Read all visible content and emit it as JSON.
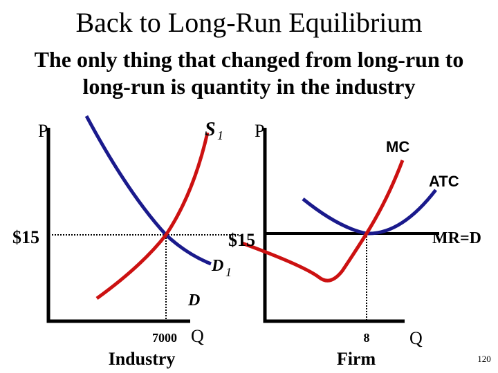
{
  "title": "Back to Long-Run Equilibrium",
  "subtitle": [
    "The only thing that changed from long-run to",
    "long-run is quantity in the industry"
  ],
  "industry": {
    "y_axis": "P",
    "supply": "S",
    "supply_sub": "1",
    "price": "$15",
    "demand_new": "D",
    "demand_new_sub": "1",
    "demand_old": "D",
    "quantity": "7000",
    "x_axis": "Q",
    "caption": "Industry"
  },
  "firm": {
    "y_axis": "P",
    "mc": "MC",
    "atc": "ATC",
    "price": "$15",
    "mr": "MR=D",
    "quantity": "8",
    "x_axis": "Q",
    "caption": "Firm"
  },
  "page_number": "120"
}
